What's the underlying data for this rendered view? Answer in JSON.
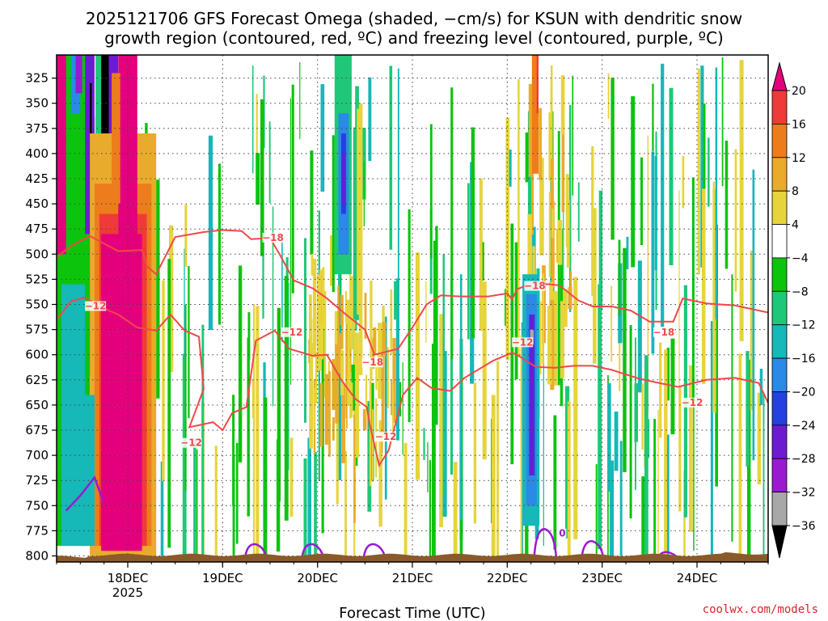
{
  "title_line1": "2025121706 GFS Forecast Omega (shaded, −cm/s) for KSUN with dendritic snow",
  "title_line2": "growth region (contoured, red, ºC) and freezing level (contoured, purple, ºC)",
  "credit": "coolwx.com/models",
  "colors": {
    "dgz_contour": "#f04848",
    "freezing_contour": "#9a1ad0",
    "terrain": "#8b5a2b"
  },
  "chart_data": {
    "type": "heatmap",
    "xlabel": "Forecast Time (UTC)",
    "x_ticks": [
      {
        "label": "18DEC",
        "sub": "2025"
      },
      {
        "label": "19DEC",
        "sub": ""
      },
      {
        "label": "20DEC",
        "sub": ""
      },
      {
        "label": "21DEC",
        "sub": ""
      },
      {
        "label": "22DEC",
        "sub": ""
      },
      {
        "label": "23DEC",
        "sub": ""
      },
      {
        "label": "24DEC",
        "sub": ""
      }
    ],
    "x_range_days": [
      17.25,
      24.75
    ],
    "y_ticks": [
      "325",
      "350",
      "375",
      "400",
      "425",
      "450",
      "475",
      "500",
      "525",
      "550",
      "575",
      "600",
      "625",
      "650",
      "675",
      "700",
      "725",
      "750",
      "775",
      "800"
    ],
    "y_range": [
      302,
      806
    ],
    "colorbar": {
      "labels": [
        "20",
        "16",
        "12",
        "8",
        "4",
        "−4",
        "−8",
        "−12",
        "−16",
        "−20",
        "−24",
        "−28",
        "−32",
        "−36"
      ],
      "colors": [
        "#e4007c",
        "#f03a3a",
        "#ed7d1c",
        "#e9ab2c",
        "#e6d43c",
        "#ffffff",
        "#0cc40c",
        "#1ec878",
        "#16b8b8",
        "#2a8ae6",
        "#2440e0",
        "#6c1cd0",
        "#9a1ad0",
        "#a8a8a8",
        "#000000"
      ]
    },
    "contour_labels": [
      {
        "text": "−18",
        "x": 19.53,
        "y": 486
      },
      {
        "text": "−12",
        "x": 17.66,
        "y": 554
      },
      {
        "text": "−12",
        "x": 19.73,
        "y": 580
      },
      {
        "text": "−18",
        "x": 20.58,
        "y": 610
      },
      {
        "text": "−12",
        "x": 18.67,
        "y": 690
      },
      {
        "text": "−12",
        "x": 20.72,
        "y": 684
      },
      {
        "text": "−18",
        "x": 22.29,
        "y": 534
      },
      {
        "text": "−12",
        "x": 22.16,
        "y": 590
      },
      {
        "text": "−18",
        "x": 23.65,
        "y": 580
      },
      {
        "text": "−12",
        "x": 23.95,
        "y": 650
      },
      {
        "text": "0",
        "x": 22.58,
        "y": 780
      }
    ],
    "dgz_upper": [
      [
        17.25,
        503
      ],
      [
        17.4,
        492
      ],
      [
        17.6,
        482
      ],
      [
        17.9,
        497
      ],
      [
        18.15,
        496
      ],
      [
        18.2,
        512
      ],
      [
        18.3,
        520
      ],
      [
        18.5,
        483
      ],
      [
        18.8,
        478
      ],
      [
        19.0,
        476
      ],
      [
        19.2,
        477
      ],
      [
        19.3,
        485
      ],
      [
        19.5,
        484
      ],
      [
        19.6,
        500
      ],
      [
        19.75,
        526
      ],
      [
        19.95,
        534
      ],
      [
        20.1,
        544
      ],
      [
        20.3,
        560
      ],
      [
        20.5,
        575
      ],
      [
        20.6,
        600
      ],
      [
        20.85,
        594
      ],
      [
        21.0,
        573
      ],
      [
        21.15,
        550
      ],
      [
        21.3,
        541
      ],
      [
        21.5,
        542
      ],
      [
        21.8,
        542
      ],
      [
        22.0,
        539
      ],
      [
        22.05,
        545
      ],
      [
        22.1,
        535
      ],
      [
        22.25,
        529
      ],
      [
        22.45,
        530
      ],
      [
        22.55,
        531
      ],
      [
        22.75,
        546
      ],
      [
        22.9,
        552
      ],
      [
        23.1,
        552
      ],
      [
        23.3,
        556
      ],
      [
        23.5,
        567
      ],
      [
        23.75,
        567
      ],
      [
        23.85,
        544
      ],
      [
        24.1,
        549
      ],
      [
        24.4,
        551
      ],
      [
        24.75,
        558
      ]
    ],
    "dgz_lower": [
      [
        17.25,
        565
      ],
      [
        17.4,
        547
      ],
      [
        17.55,
        543
      ],
      [
        17.7,
        552
      ],
      [
        17.8,
        556
      ],
      [
        17.9,
        560
      ],
      [
        18.1,
        573
      ],
      [
        18.3,
        576
      ],
      [
        18.45,
        560
      ],
      [
        18.6,
        576
      ],
      [
        18.75,
        582
      ],
      [
        18.8,
        634
      ],
      [
        18.65,
        672
      ],
      [
        18.9,
        667
      ],
      [
        19.0,
        675
      ],
      [
        19.1,
        658
      ],
      [
        19.25,
        652
      ],
      [
        19.35,
        586
      ],
      [
        19.55,
        576
      ],
      [
        19.7,
        594
      ],
      [
        19.95,
        601
      ],
      [
        20.1,
        600
      ],
      [
        20.25,
        625
      ],
      [
        20.4,
        644
      ],
      [
        20.52,
        652
      ],
      [
        20.55,
        669
      ],
      [
        20.65,
        710
      ],
      [
        20.75,
        695
      ],
      [
        20.9,
        640
      ],
      [
        21.05,
        623
      ],
      [
        21.2,
        633
      ],
      [
        21.4,
        636
      ],
      [
        21.55,
        623
      ],
      [
        21.85,
        606
      ],
      [
        22.05,
        598
      ],
      [
        22.1,
        600
      ],
      [
        22.3,
        612
      ],
      [
        22.5,
        613
      ],
      [
        22.7,
        611
      ],
      [
        22.9,
        611
      ],
      [
        23.1,
        615
      ],
      [
        23.4,
        624
      ],
      [
        23.6,
        628
      ],
      [
        23.8,
        632
      ],
      [
        24.1,
        625
      ],
      [
        24.4,
        623
      ],
      [
        24.65,
        628
      ],
      [
        24.75,
        648
      ]
    ],
    "freezing_level": [
      [
        17.35,
        755
      ],
      [
        17.5,
        740
      ],
      [
        17.65,
        722
      ],
      [
        17.75,
        748
      ]
    ],
    "freezing_blips": [
      [
        19.35,
        790
      ],
      [
        19.95,
        790
      ],
      [
        20.6,
        790
      ],
      [
        22.4,
        775
      ],
      [
        22.9,
        787
      ],
      [
        23.7,
        798
      ]
    ]
  }
}
